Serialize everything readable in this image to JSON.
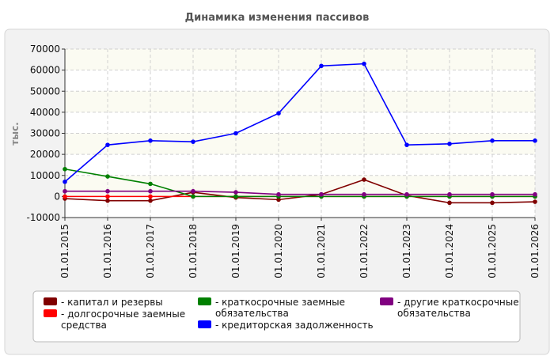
{
  "chart_data": {
    "type": "line",
    "title": "Динамика изменения пассивов",
    "ylabel": "тыс.",
    "xlabel": "",
    "ylim": [
      -10000,
      70000
    ],
    "yticks": [
      -10000,
      0,
      10000,
      20000,
      30000,
      40000,
      50000,
      60000,
      70000
    ],
    "grid": true,
    "legend_position": "bottom",
    "categories": [
      "01.01.2015",
      "01.01.2016",
      "01.01.2017",
      "01.01.2018",
      "01.01.2019",
      "01.01.2020",
      "01.01.2021",
      "01.01.2022",
      "01.01.2023",
      "01.01.2024",
      "01.01.2025",
      "01.01.2026"
    ],
    "series": [
      {
        "name": "капитал и резервы",
        "color": "#800000",
        "values": [
          -1000,
          -2000,
          -2000,
          2000,
          -500,
          -1500,
          1000,
          8000,
          500,
          -3000,
          -3000,
          -2500
        ]
      },
      {
        "name": "долгосрочные заемные средства",
        "color": "#ff0000",
        "values": [
          0,
          0,
          0,
          0,
          0,
          0,
          0,
          0,
          0,
          0,
          0,
          0
        ]
      },
      {
        "name": "краткосрочные заемные обязательства",
        "color": "#008000",
        "values": [
          13000,
          9500,
          6000,
          0,
          0,
          0,
          0,
          0,
          0,
          0,
          0,
          0
        ]
      },
      {
        "name": "кредиторская задолженность",
        "color": "#0000ff",
        "values": [
          7000,
          24500,
          26500,
          26000,
          30000,
          39500,
          62000,
          63000,
          24500,
          25000,
          26500,
          26500
        ]
      },
      {
        "name": "другие краткосрочные обязательства",
        "color": "#800080",
        "values": [
          2500,
          2500,
          2500,
          2500,
          2000,
          1000,
          1000,
          1000,
          1000,
          1000,
          1000,
          1000
        ]
      }
    ],
    "legend_layout": [
      {
        "series": 0,
        "lines": [
          "- капитал и резервы"
        ]
      },
      {
        "series": 1,
        "lines": [
          "- долгосрочные заемные",
          "средства"
        ]
      },
      {
        "series": 2,
        "lines": [
          "- краткосрочные заемные",
          "обязательства"
        ]
      },
      {
        "series": 3,
        "lines": [
          "- кредиторская задолженность"
        ]
      },
      {
        "series": 4,
        "lines": [
          "- другие краткосрочные",
          "обязательства"
        ]
      }
    ]
  }
}
